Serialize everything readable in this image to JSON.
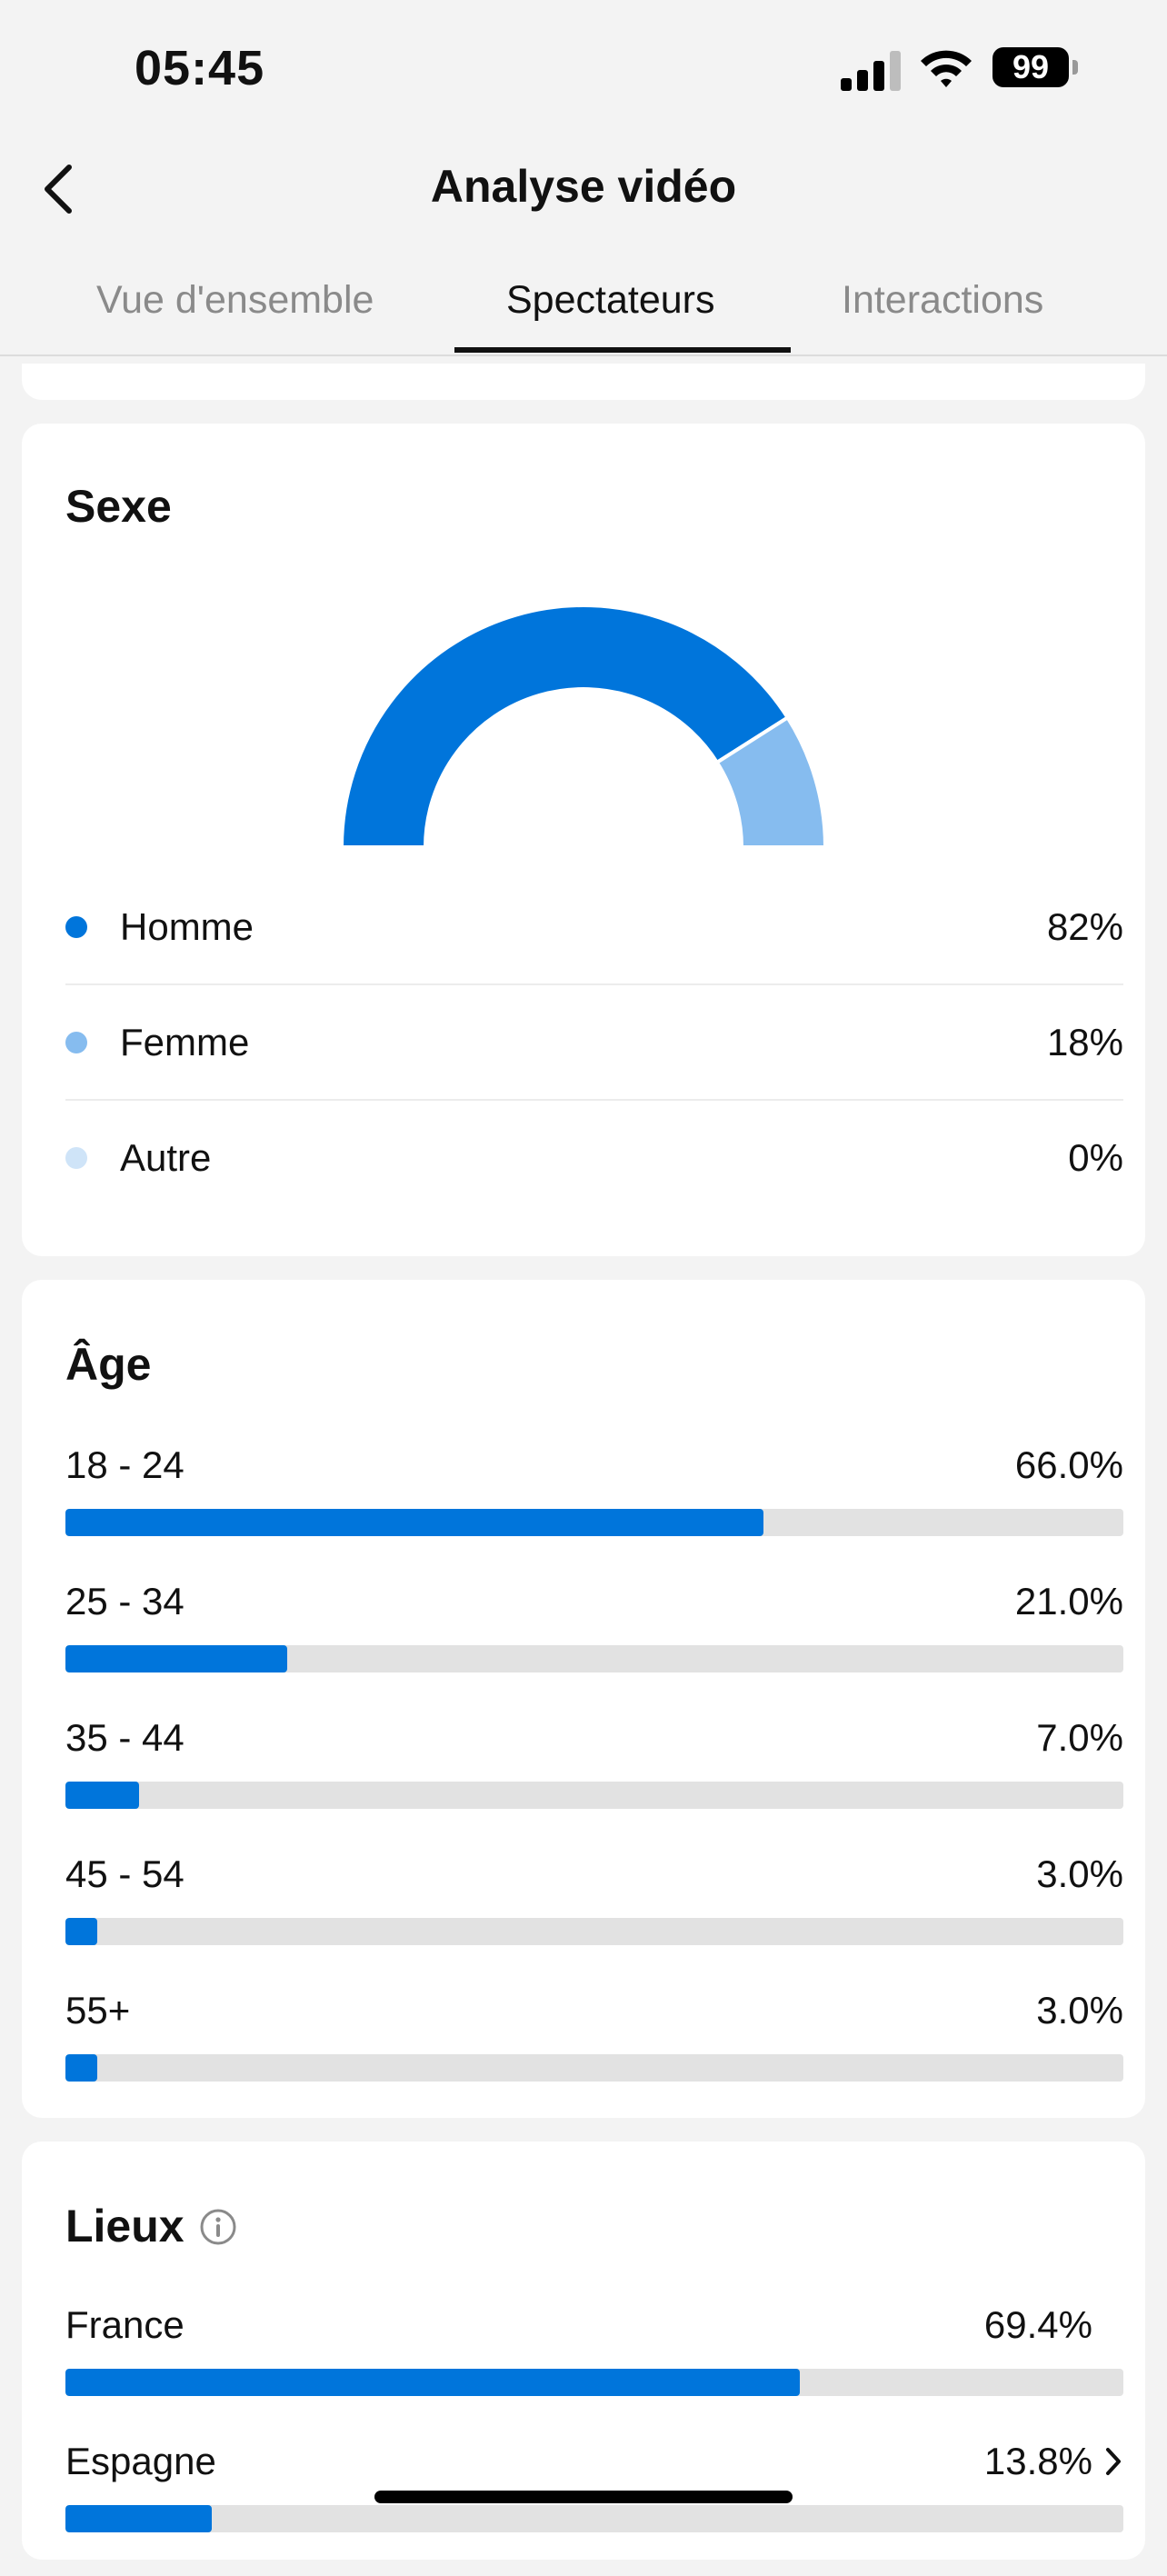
{
  "status": {
    "time": "05:45",
    "battery": "99"
  },
  "header": {
    "title": "Analyse vidéo"
  },
  "tabs": [
    {
      "label": "Vue d'ensemble"
    },
    {
      "label": "Spectateurs"
    },
    {
      "label": "Interactions"
    }
  ],
  "gender": {
    "title": "Sexe",
    "items": [
      {
        "label": "Homme",
        "value": "82%",
        "fraction": 0.82,
        "color": "#0075db"
      },
      {
        "label": "Femme",
        "value": "18%",
        "fraction": 0.18,
        "color": "#86bcef"
      },
      {
        "label": "Autre",
        "value": "0%",
        "fraction": 0,
        "color": "#cfe4f8"
      }
    ]
  },
  "age": {
    "title": "Âge",
    "items": [
      {
        "label": "18 - 24",
        "value": "66.0%",
        "fraction": 0.66
      },
      {
        "label": "25 - 34",
        "value": "21.0%",
        "fraction": 0.21
      },
      {
        "label": "35 - 44",
        "value": "7.0%",
        "fraction": 0.07
      },
      {
        "label": "45 - 54",
        "value": "3.0%",
        "fraction": 0.03
      },
      {
        "label": "55+",
        "value": "3.0%",
        "fraction": 0.03
      }
    ]
  },
  "locations": {
    "title": "Lieux",
    "items": [
      {
        "label": "France",
        "value": "69.4%",
        "fraction": 0.694
      },
      {
        "label": "Espagne",
        "value": "13.8%",
        "fraction": 0.138
      }
    ]
  },
  "colors": {
    "accent": "#0075db",
    "track": "#e2e2e2"
  }
}
